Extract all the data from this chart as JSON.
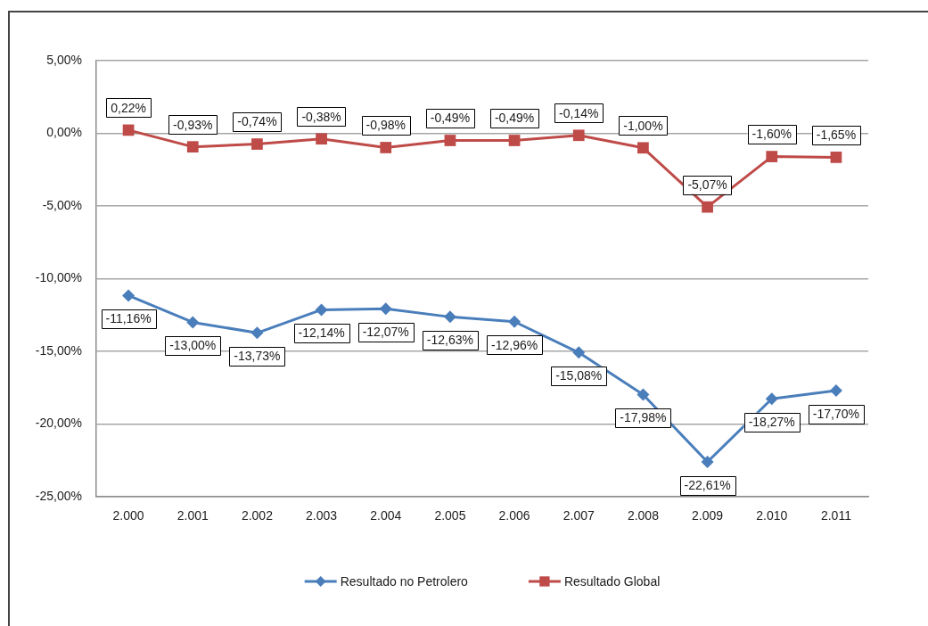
{
  "chart_data": {
    "type": "line",
    "categories": [
      "2.000",
      "2.001",
      "2.002",
      "2.003",
      "2.004",
      "2.005",
      "2.006",
      "2.007",
      "2.008",
      "2.009",
      "2.010",
      "2.011"
    ],
    "series": [
      {
        "name": "Resultado no Petrolero",
        "color": "#4a7ebb",
        "marker": "diamond",
        "values": [
          -11.16,
          -13.0,
          -13.73,
          -12.14,
          -12.07,
          -12.63,
          -12.96,
          -15.08,
          -17.98,
          -22.61,
          -18.27,
          -17.7
        ],
        "value_labels": [
          "-11,16%",
          "-13,00%",
          "-13,73%",
          "-12,14%",
          "-12,07%",
          "-12,63%",
          "-12,96%",
          "-15,08%",
          "-17,98%",
          "-22,61%",
          "-18,27%",
          "-17,70%"
        ]
      },
      {
        "name": "Resultado Global",
        "color": "#be4b48",
        "marker": "square",
        "values": [
          0.22,
          -0.93,
          -0.74,
          -0.38,
          -0.98,
          -0.49,
          -0.49,
          -0.14,
          -1.0,
          -5.07,
          -1.6,
          -1.65
        ],
        "value_labels": [
          "0,22%",
          "-0,93%",
          "-0,74%",
          "-0,38%",
          "-0,98%",
          "-0,49%",
          "-0,49%",
          "-0,14%",
          "-1,00%",
          "-5,07%",
          "-1,60%",
          "-1,65%"
        ]
      }
    ],
    "ylim": [
      -25,
      5
    ],
    "yticks": [
      {
        "value": -25,
        "label": "-25,00%"
      },
      {
        "value": -20,
        "label": "-20,00%"
      },
      {
        "value": -15,
        "label": "-15,00%"
      },
      {
        "value": -10,
        "label": "-10,00%"
      },
      {
        "value": -5,
        "label": "-5,00%"
      },
      {
        "value": 0,
        "label": "0,00%"
      },
      {
        "value": 5,
        "label": "5,00%"
      }
    ],
    "grid": "y",
    "legend": "bottom",
    "line_style": "solid"
  }
}
